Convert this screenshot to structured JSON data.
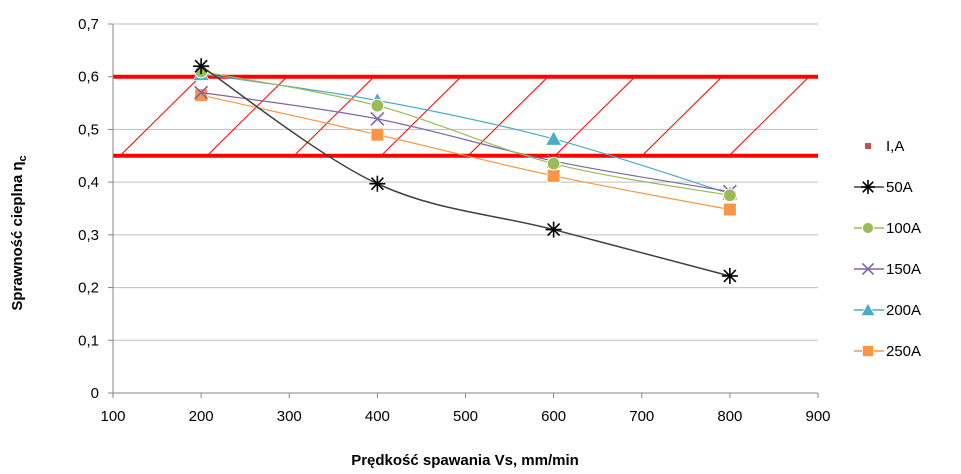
{
  "chart_data": {
    "type": "line",
    "xlabel": "Prędkość spawania Vs, mm/min",
    "ylabel": "Sprawność cieplna η",
    "ylabel_sub": "c",
    "xlim": [
      100,
      900
    ],
    "ylim": [
      0,
      0.7
    ],
    "x_ticks": [
      100,
      200,
      300,
      400,
      500,
      600,
      700,
      800,
      900
    ],
    "y_ticks": [
      0,
      0.1,
      0.2,
      0.3,
      0.4,
      0.5,
      0.6,
      0.7
    ],
    "y_tick_labels": [
      "0",
      "0,1",
      "0,2",
      "0,3",
      "0,4",
      "0,5",
      "0,6",
      "0,7"
    ],
    "grid": "horizontal",
    "legend_position": "right",
    "legend_title": "I,A",
    "legend_title_color": "#c0504d",
    "band": {
      "ymin": 0.45,
      "ymax": 0.6,
      "color": "#ff0000",
      "hatch": true
    },
    "x": [
      200,
      400,
      600,
      800
    ],
    "series": [
      {
        "name": "50A",
        "values": [
          0.62,
          0.397,
          0.31,
          0.222
        ],
        "color": "#404040",
        "marker": "star"
      },
      {
        "name": "100A",
        "values": [
          0.61,
          0.545,
          0.435,
          0.375
        ],
        "color": "#9bbb59",
        "marker": "circle"
      },
      {
        "name": "150A",
        "values": [
          0.57,
          0.52,
          0.44,
          0.382
        ],
        "color": "#8064a2",
        "marker": "x"
      },
      {
        "name": "200A",
        "values": [
          0.605,
          0.555,
          0.482,
          0.378
        ],
        "color": "#4bacc6",
        "marker": "triangle"
      },
      {
        "name": "250A",
        "values": [
          0.565,
          0.49,
          0.412,
          0.348
        ],
        "color": "#f79646",
        "marker": "square"
      }
    ]
  }
}
